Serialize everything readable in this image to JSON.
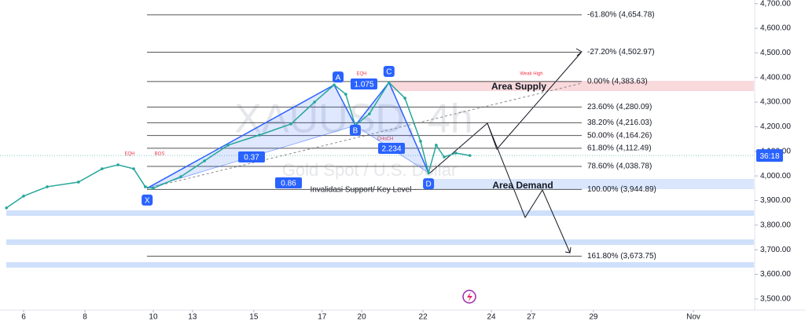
{
  "chart_data": {
    "type": "line",
    "watermark_title": "XAUUSD, 4h",
    "watermark_subtitle": "Gold Spot / U.S. Dollar",
    "x": [
      -0.56,
      0,
      0.77,
      1.79,
      2.56,
      3.08,
      3.59,
      3.97,
      4.23,
      5.13,
      5.9,
      6.67,
      7.69,
      8.72,
      9.49,
      10.13,
      10.51,
      10.82,
      11.28,
      11.92,
      12.44,
      12.95,
      13.21,
      13.46,
      13.72,
      14.1,
      14.56
    ],
    "series": [
      {
        "name": "XAUUSD",
        "color": "#26a69a",
        "values": [
          3870,
          3918,
          3956,
          3975,
          4029,
          4045,
          4029,
          3956,
          3950,
          3997,
          4061,
          4125,
          4166,
          4211,
          4300,
          4370,
          4332,
          4205,
          4252,
          4380,
          4316,
          4141,
          4013,
          4125,
          4077,
          4093,
          4083
        ]
      }
    ],
    "xlim": [
      -0.77,
      23.85
    ],
    "ylim": [
      3455,
      4715
    ],
    "xticks": [
      {
        "value": 0,
        "label": "6"
      },
      {
        "value": 2,
        "label": "8"
      },
      {
        "value": 4.23,
        "label": "10"
      },
      {
        "value": 5.51,
        "label": "13"
      },
      {
        "value": 7.51,
        "label": "15"
      },
      {
        "value": 9.74,
        "label": "17"
      },
      {
        "value": 11.03,
        "label": "20"
      },
      {
        "value": 13.03,
        "label": "22"
      },
      {
        "value": 15.26,
        "label": "24"
      },
      {
        "value": 16.56,
        "label": "27"
      },
      {
        "value": 18.59,
        "label": "29"
      },
      {
        "value": 21.85,
        "label": "Nov"
      }
    ],
    "yticks": [
      {
        "value": 3500,
        "label": "3,500.00"
      },
      {
        "value": 3600,
        "label": "3,600.00"
      },
      {
        "value": 3700,
        "label": "3,700.00"
      },
      {
        "value": 3800,
        "label": "3,800.00"
      },
      {
        "value": 3900,
        "label": "3,900.00"
      },
      {
        "value": 4000,
        "label": "4,000.00"
      },
      {
        "value": 4100,
        "label": "4,100.00"
      },
      {
        "value": 4200,
        "label": "4,200.00"
      },
      {
        "value": 4300,
        "label": "4,300.00"
      },
      {
        "value": 4400,
        "label": "4,400.00"
      },
      {
        "value": 4500,
        "label": "4,500.00"
      },
      {
        "value": 4600,
        "label": "4,600.00"
      },
      {
        "value": 4700,
        "label": "4,700.00"
      }
    ],
    "countdown": "36:18",
    "fib_levels": [
      {
        "label": "-61.80% (4,654.78)",
        "value": 4654.78
      },
      {
        "label": "-27.20% (4,502.97)",
        "value": 4502.97
      },
      {
        "label": "0.00% (4,383.63)",
        "value": 4383.63
      },
      {
        "label": "23.60% (4,280.09)",
        "value": 4280.09
      },
      {
        "label": "38.20% (4,216.03)",
        "value": 4216.03
      },
      {
        "label": "50.00% (4,164.26)",
        "value": 4164.26
      },
      {
        "label": "61.80% (4,112.49)",
        "value": 4112.49
      },
      {
        "label": "78.60% (4,038.78)",
        "value": 4038.78
      },
      {
        "label": "100.00% (3,944.89)",
        "value": 3944.89
      },
      {
        "label": "161.80% (3,673.75)",
        "value": 3673.75
      }
    ],
    "pattern": [
      {
        "label": "X",
        "x": 4.03,
        "value": 3950
      },
      {
        "label": "A",
        "x": 10.13,
        "value": 4370
      },
      {
        "label": "B",
        "x": 10.82,
        "value": 4205
      },
      {
        "label": "C",
        "x": 11.92,
        "value": 4380
      },
      {
        "label": "D",
        "x": 13.21,
        "value": 4013
      }
    ],
    "ratios": [
      "0.37",
      "1.075",
      "2.234",
      "0.86"
    ],
    "zones": {
      "supply": "Area Supply",
      "demand": "Area Demand",
      "key_level": "Invalidasi Support/ Key Level -"
    },
    "markers": {
      "eqh_left": "EQH",
      "bos": "BOS",
      "eqh_top": "EQH",
      "choch": "CHoCH",
      "weak_high": "Weak High"
    }
  }
}
